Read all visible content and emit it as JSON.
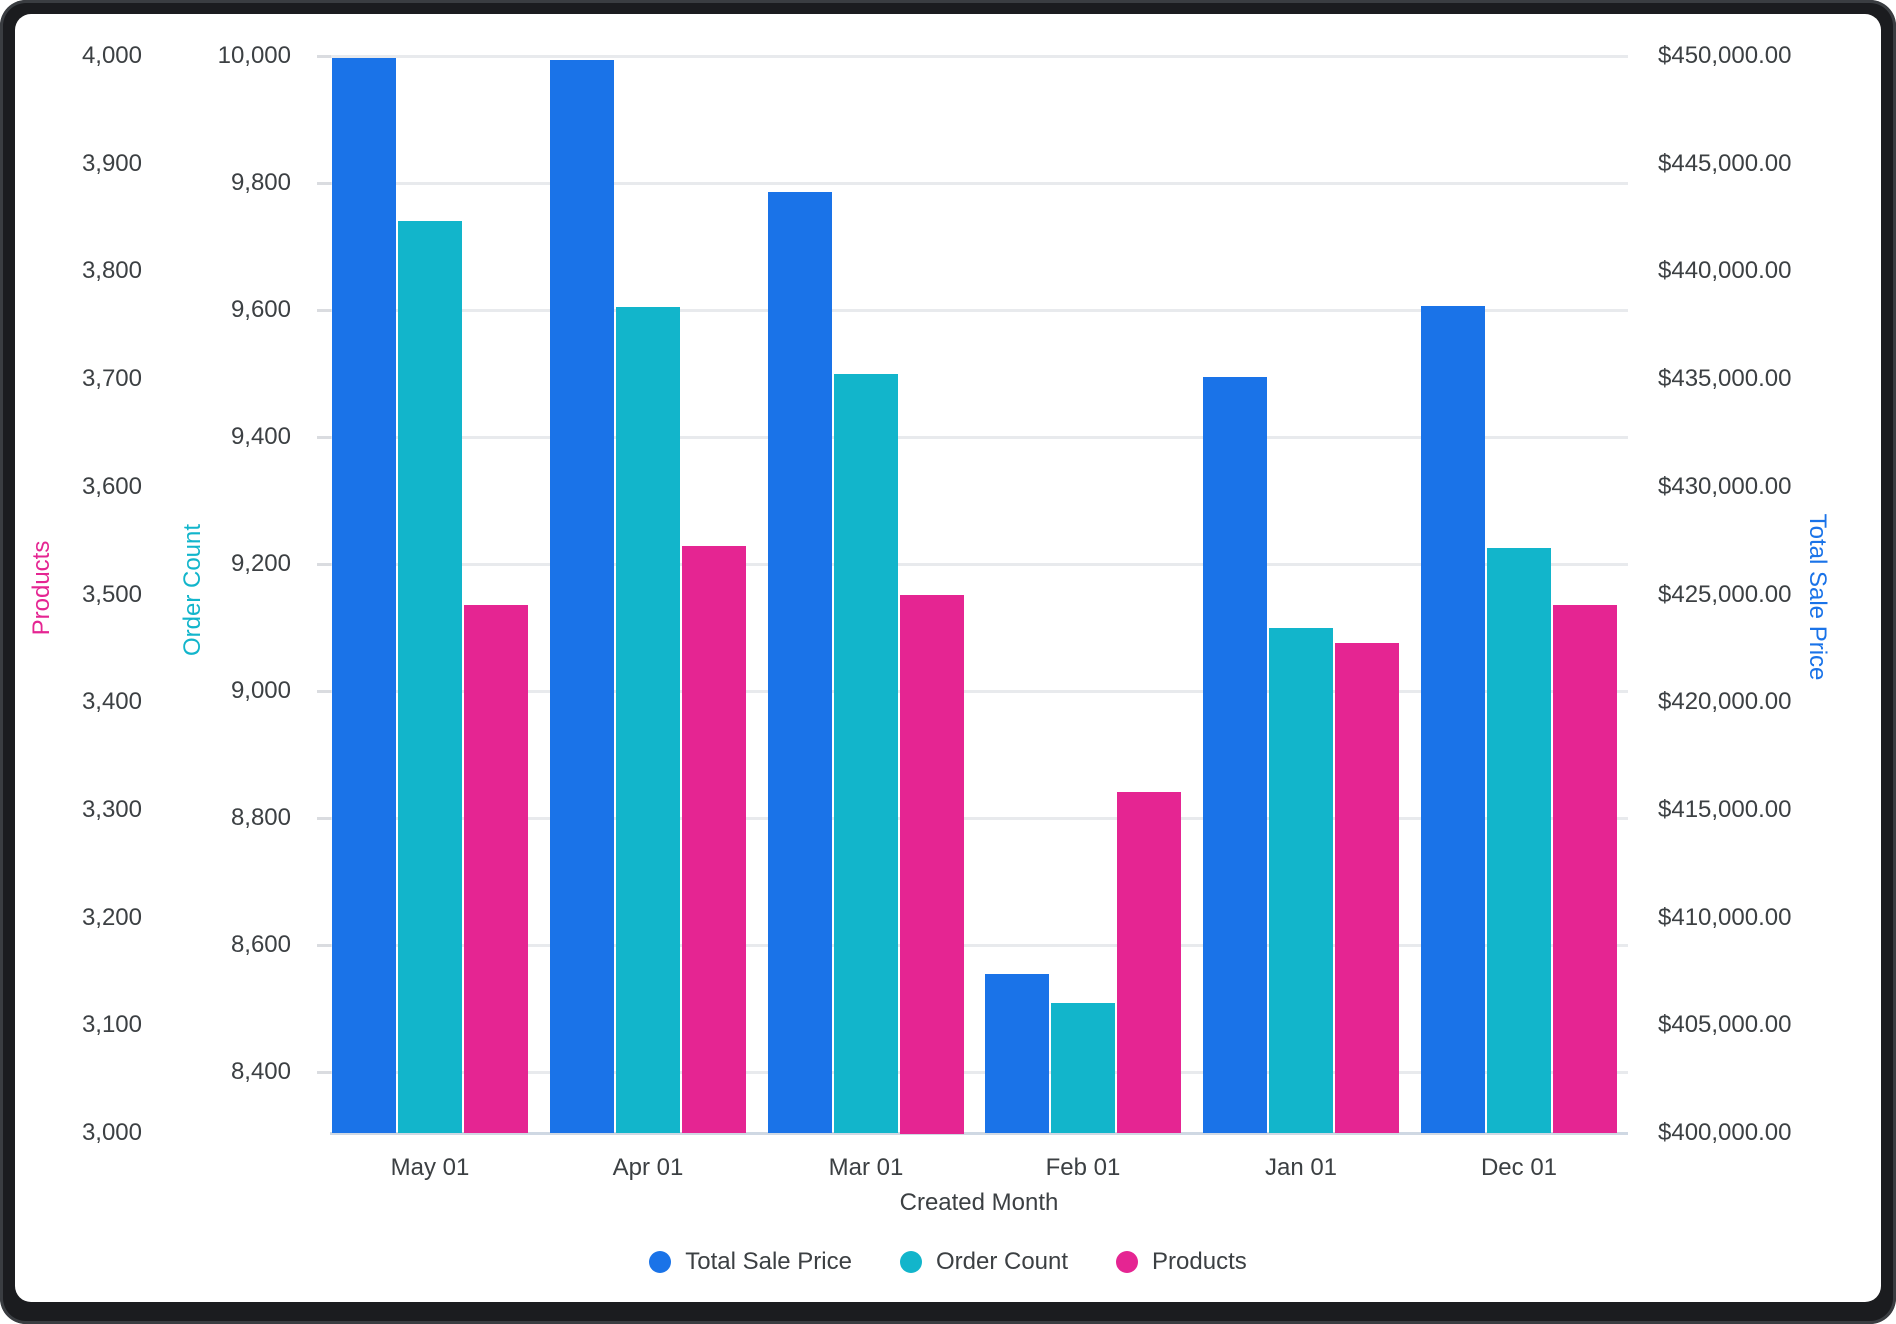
{
  "chart_data": {
    "type": "bar",
    "title": "",
    "xlabel": "Created Month",
    "categories": [
      "May 01",
      "Apr 01",
      "Mar 01",
      "Feb 01",
      "Jan 01",
      "Dec 01"
    ],
    "series": [
      {
        "name": "Total Sale Price",
        "axis": "tsp",
        "color": "#1a73e8",
        "values": [
          449900,
          449800,
          443700,
          407400,
          435100,
          438400
        ]
      },
      {
        "name": "Order Count",
        "axis": "oc",
        "color": "#12b5cb",
        "values": [
          9740,
          9605,
          9500,
          8510,
          9100,
          9225
        ]
      },
      {
        "name": "Products",
        "axis": "products",
        "color": "#e52592",
        "values": [
          3490,
          3545,
          3500,
          3317,
          3455,
          3490
        ]
      }
    ],
    "axes": {
      "products": {
        "title": "Products",
        "color": "#e52592",
        "side": "left",
        "min": 3000,
        "max": 4000,
        "tick_step": 100,
        "tick_labels": [
          "4,000",
          "3,900",
          "3,800",
          "3,700",
          "3,600",
          "3,500",
          "3,400",
          "3,300",
          "3,200",
          "3,100",
          "3,000"
        ]
      },
      "oc": {
        "title": "Order Count",
        "color": "#12b5cb",
        "side": "left",
        "tick_values": [
          10000,
          9800,
          9600,
          9400,
          9200,
          9000,
          8800,
          8600,
          8400
        ],
        "tick_labels": [
          "10,000",
          "9,800",
          "9,600",
          "9,400",
          "9,200",
          "9,000",
          "8,800",
          "8,600",
          "8,400"
        ]
      },
      "tsp": {
        "title": "Total Sale Price",
        "color": "#1a73e8",
        "side": "right",
        "min": 400000,
        "max": 450000,
        "tick_step": 5000,
        "tick_labels": [
          "$450,000.00",
          "$445,000.00",
          "$440,000.00",
          "$435,000.00",
          "$430,000.00",
          "$425,000.00",
          "$420,000.00",
          "$415,000.00",
          "$410,000.00",
          "$405,000.00",
          "$400,000.00"
        ]
      }
    },
    "legend": [
      {
        "label": "Total Sale Price",
        "color": "#1a73e8"
      },
      {
        "label": "Order Count",
        "color": "#12b5cb"
      },
      {
        "label": "Products",
        "color": "#e52592"
      }
    ],
    "grid": "horizontal",
    "legend_position": "bottom"
  }
}
